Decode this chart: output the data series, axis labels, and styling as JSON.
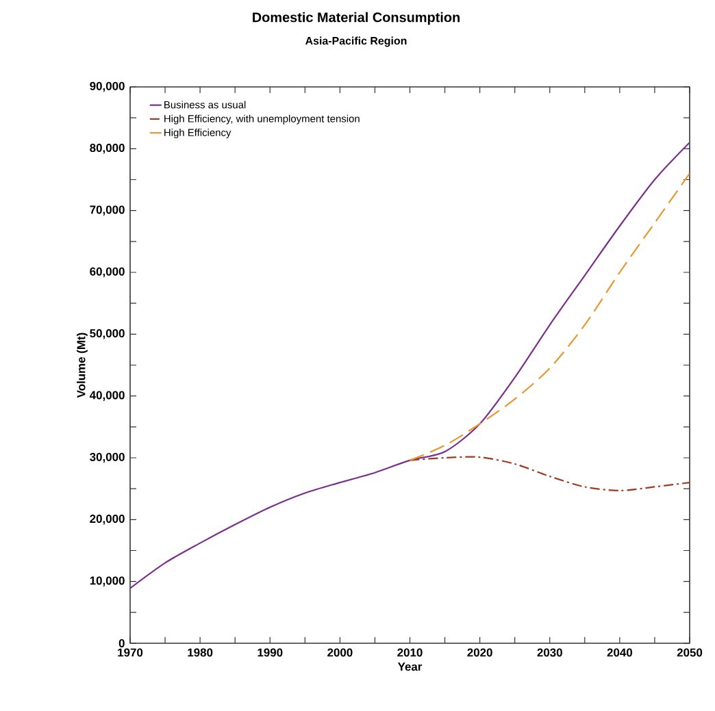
{
  "chart_data": {
    "type": "line",
    "title": "Domestic Material Consumption",
    "subtitle": "Asia-Pacific Region",
    "xlabel": "Year",
    "ylabel": "Volume (Mt)",
    "xlim": [
      1970,
      2050
    ],
    "ylim": [
      0,
      90000
    ],
    "xticks": [
      1970,
      {
        "value": 1975,
        "label": null
      },
      1980,
      {
        "value": 1985,
        "label": null
      },
      1990,
      {
        "value": 1995,
        "label": null
      },
      2000,
      {
        "value": 2005,
        "label": null
      },
      2010,
      {
        "value": 2015,
        "label": null
      },
      2020,
      {
        "value": 2025,
        "label": null
      },
      2030,
      {
        "value": 2035,
        "label": null
      },
      2040,
      {
        "value": 2045,
        "label": null
      },
      2050
    ],
    "yticks": [
      0,
      {
        "value": 5000,
        "label": null
      },
      {
        "value": 10000,
        "label": "10,000"
      },
      {
        "value": 15000,
        "label": null
      },
      {
        "value": 20000,
        "label": "20,000"
      },
      {
        "value": 25000,
        "label": null
      },
      {
        "value": 30000,
        "label": "30,000"
      },
      {
        "value": 35000,
        "label": null
      },
      {
        "value": 40000,
        "label": "40,000"
      },
      {
        "value": 45000,
        "label": null
      },
      {
        "value": 50000,
        "label": "50,000"
      },
      {
        "value": 55000,
        "label": null
      },
      {
        "value": 60000,
        "label": "60,000"
      },
      {
        "value": 65000,
        "label": null
      },
      {
        "value": 70000,
        "label": "70,000"
      },
      {
        "value": 75000,
        "label": null
      },
      {
        "value": 80000,
        "label": "80,000"
      },
      {
        "value": 85000,
        "label": null
      },
      {
        "value": 90000,
        "label": "90,000"
      }
    ],
    "legend": "top left",
    "grid": false,
    "series": [
      {
        "name": "Business as usual",
        "color": "#7b2d8e",
        "line_style": "solid",
        "x": [
          1970,
          1975,
          1980,
          1985,
          1990,
          1995,
          2000,
          2005,
          2010,
          2015,
          2020,
          2025,
          2030,
          2035,
          2040,
          2045,
          2050
        ],
        "values": [
          8900,
          13000,
          16200,
          19200,
          22000,
          24300,
          26000,
          27600,
          29600,
          31000,
          35500,
          43000,
          51500,
          59500,
          67500,
          75000,
          81000
        ]
      },
      {
        "name": "High Efficiency, with unemployment tension",
        "color": "#a0391f",
        "line_style": "dashdot",
        "x": [
          2010,
          2015,
          2020,
          2025,
          2030,
          2035,
          2040,
          2045,
          2050
        ],
        "values": [
          29600,
          30000,
          30100,
          29000,
          27000,
          25300,
          24700,
          25300,
          26000
        ]
      },
      {
        "name": "High Efficiency",
        "color": "#e8962e",
        "line_style": "dashed",
        "x": [
          2010,
          2015,
          2020,
          2025,
          2030,
          2035,
          2040,
          2045,
          2050
        ],
        "values": [
          29600,
          32000,
          35500,
          39500,
          44500,
          51500,
          60000,
          68000,
          76000
        ]
      }
    ]
  }
}
